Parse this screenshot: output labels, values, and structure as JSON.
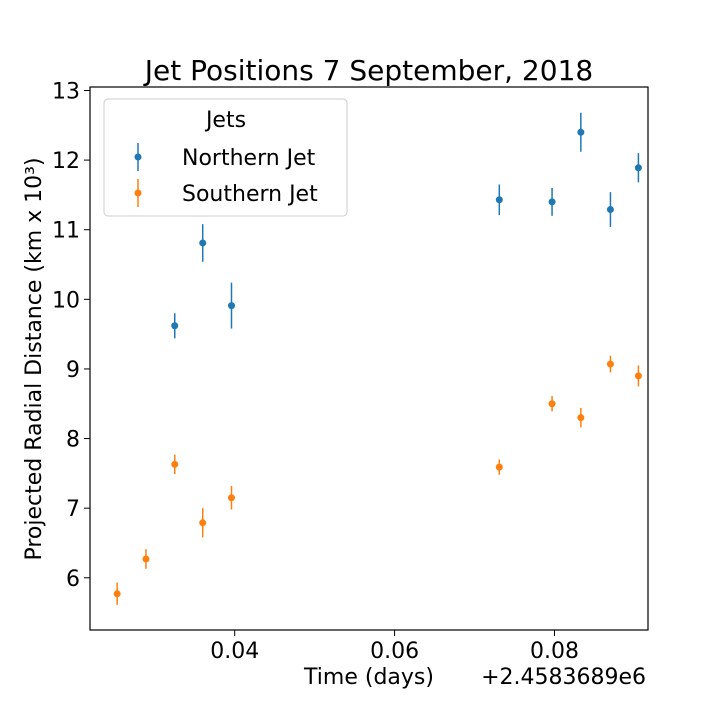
{
  "chart_data": {
    "type": "scatter",
    "title": "Jet Positions 7 September, 2018",
    "xlabel": "Time (days)",
    "x_offset_label": "+2.4583689e6",
    "ylabel": "Projected Radial Distance (km x 10³)",
    "xlim": [
      0.0219,
      0.0917
    ],
    "ylim": [
      5.25,
      13.05
    ],
    "xticks": [
      0.04,
      0.06,
      0.08
    ],
    "xtick_labels": [
      "0.04",
      "0.06",
      "0.08"
    ],
    "yticks": [
      6,
      7,
      8,
      9,
      10,
      11,
      12,
      13
    ],
    "ytick_labels": [
      "6",
      "7",
      "8",
      "9",
      "10",
      "11",
      "12",
      "13"
    ],
    "grid": false,
    "legend": {
      "title": "Jets",
      "position": "top-left"
    },
    "series": [
      {
        "name": "Northern Jet",
        "color": "#1f77b4",
        "x": [
          0.0325,
          0.036,
          0.0396,
          0.0731,
          0.0797,
          0.0833,
          0.087,
          0.0905
        ],
        "y": [
          9.62,
          10.81,
          9.91,
          11.43,
          11.4,
          12.4,
          11.29,
          11.89
        ],
        "err": [
          0.18,
          0.27,
          0.33,
          0.22,
          0.2,
          0.28,
          0.25,
          0.21
        ]
      },
      {
        "name": "Southern Jet",
        "color": "#ff7f0e",
        "x": [
          0.0253,
          0.0289,
          0.0325,
          0.036,
          0.0396,
          0.0731,
          0.0797,
          0.0833,
          0.087,
          0.0905
        ],
        "y": [
          5.77,
          6.27,
          7.63,
          6.79,
          7.15,
          7.59,
          8.5,
          8.3,
          9.07,
          8.9
        ],
        "err": [
          0.16,
          0.14,
          0.14,
          0.21,
          0.17,
          0.11,
          0.11,
          0.14,
          0.12,
          0.15
        ]
      }
    ]
  }
}
